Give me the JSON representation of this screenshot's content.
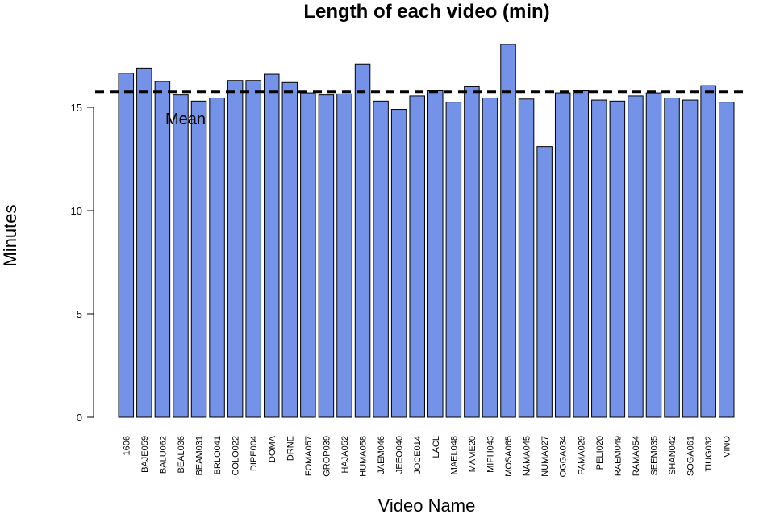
{
  "chart_data": {
    "type": "bar",
    "title": "Length of each video (min)",
    "xlabel": "Video Name",
    "ylabel": "Minutes",
    "ylim": [
      0,
      18
    ],
    "yticks": [
      0,
      5,
      10,
      15
    ],
    "bar_color": "#7392e8",
    "bar_outline": "#000000",
    "mean_value": 15.75,
    "mean_label": "Mean",
    "categories": [
      "1606",
      "BAJE059",
      "BALU062",
      "BEAL036",
      "BEAM031",
      "BRLO041",
      "COLO022",
      "DIPE004",
      "DOMA",
      "DRNE",
      "FOMA057",
      "GROP039",
      "HAJA052",
      "HUMA058",
      "JAEM046",
      "JEEO040",
      "JOCE014",
      "LACL",
      "MAEL048",
      "MAME20",
      "MIPH043",
      "MOSA065",
      "NAMA045",
      "NUMA027",
      "OGGA034",
      "PAMA029",
      "PELI020",
      "RAEM049",
      "RAMA054",
      "SEEM035",
      "SHAN042",
      "SOGA061",
      "TIUG032",
      "VINO"
    ],
    "values": [
      16.65,
      16.9,
      16.25,
      15.6,
      15.3,
      15.45,
      16.3,
      16.3,
      16.6,
      16.2,
      15.7,
      15.6,
      15.65,
      17.1,
      15.3,
      14.9,
      15.55,
      15.8,
      15.25,
      16.0,
      15.45,
      18.05,
      15.4,
      13.1,
      15.7,
      15.8,
      15.35,
      15.3,
      15.55,
      15.7,
      15.45,
      15.35,
      16.05,
      15.25
    ]
  }
}
